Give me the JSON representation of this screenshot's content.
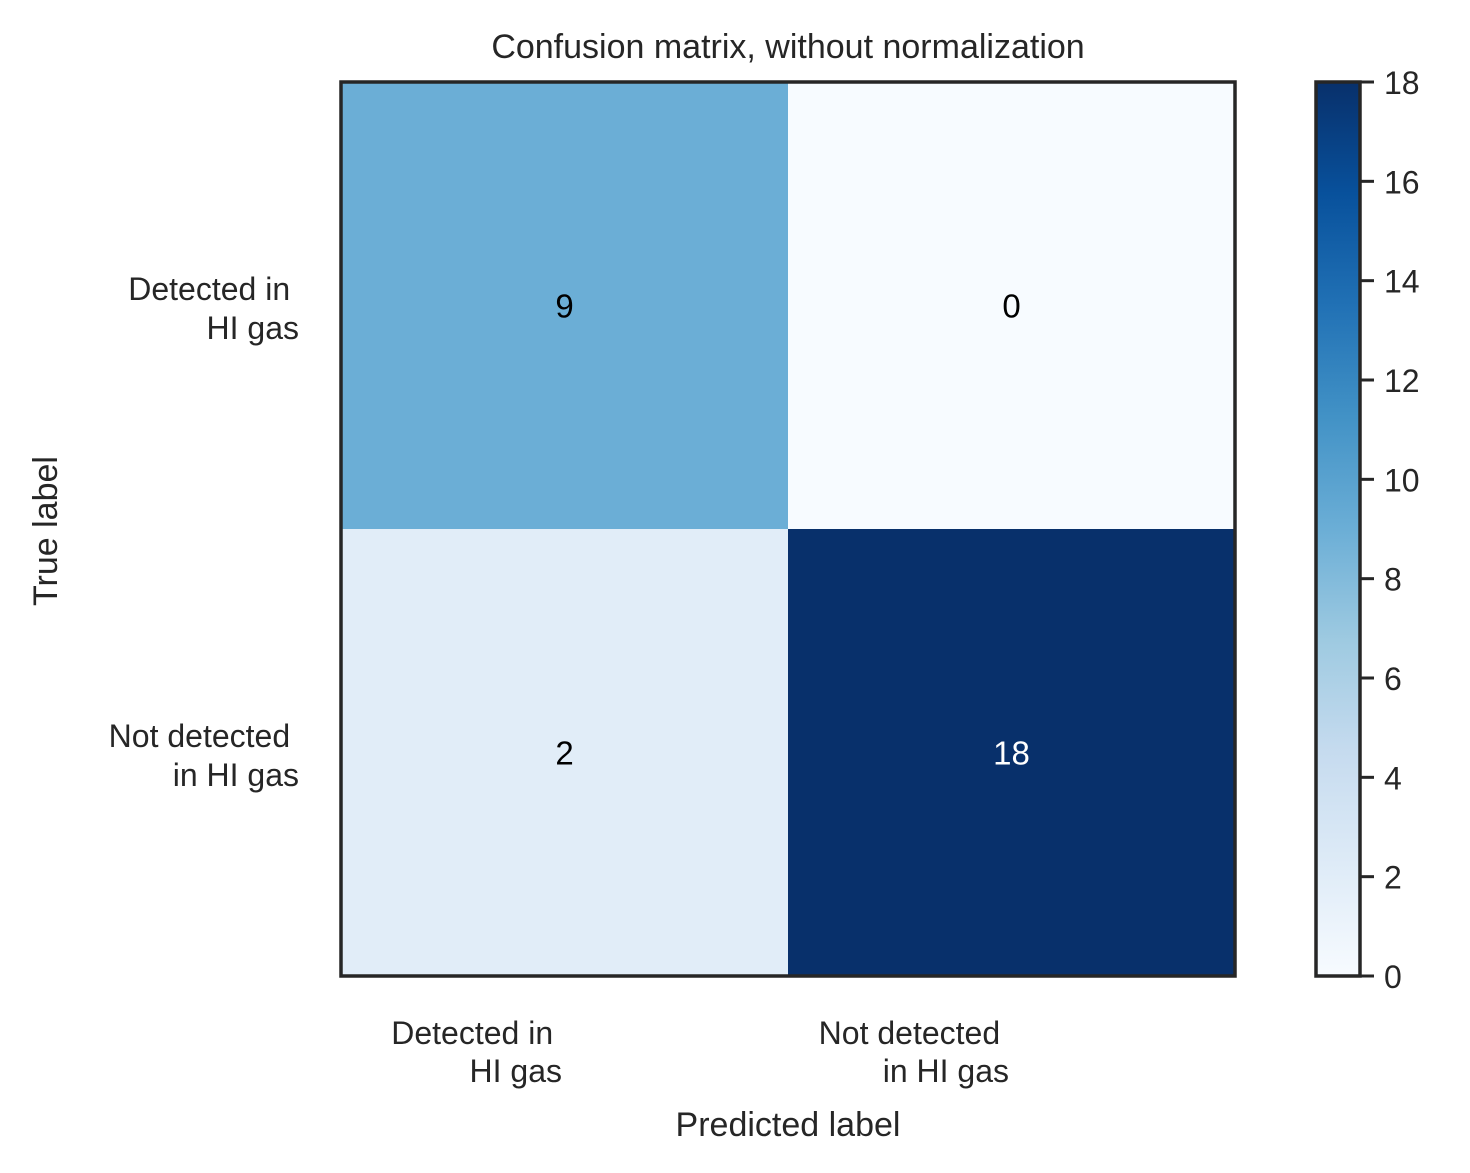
{
  "chart_data": {
    "type": "heatmap",
    "title": "Confusion matrix, without normalization",
    "xlabel": "Predicted label",
    "ylabel": "True label",
    "x_tick_labels": [
      [
        "Detected in",
        "HI gas"
      ],
      [
        "Not detected",
        "in HI gas"
      ]
    ],
    "y_tick_labels": [
      [
        "Detected in",
        "HI gas"
      ],
      [
        "Not detected",
        "in HI gas"
      ]
    ],
    "matrix": [
      [
        9,
        0
      ],
      [
        2,
        18
      ]
    ],
    "cell_labels": [
      [
        "9",
        "0"
      ],
      [
        "2",
        "18"
      ]
    ],
    "colormap": "Blues",
    "colorbar": {
      "range": [
        0,
        18
      ],
      "ticks": [
        0,
        2,
        4,
        6,
        8,
        10,
        12,
        14,
        16,
        18
      ],
      "tick_labels": [
        "0",
        "2",
        "4",
        "6",
        "8",
        "10",
        "12",
        "14",
        "16",
        "18"
      ]
    },
    "colors": {
      "frame": "#262626",
      "text_dark": "#000000",
      "text_light": "#ffffff",
      "cmap_stops": [
        "#f7fbff",
        "#deebf7",
        "#c6dbef",
        "#9ecae1",
        "#6baed6",
        "#4292c6",
        "#2171b5",
        "#08519c",
        "#08306b"
      ]
    }
  }
}
